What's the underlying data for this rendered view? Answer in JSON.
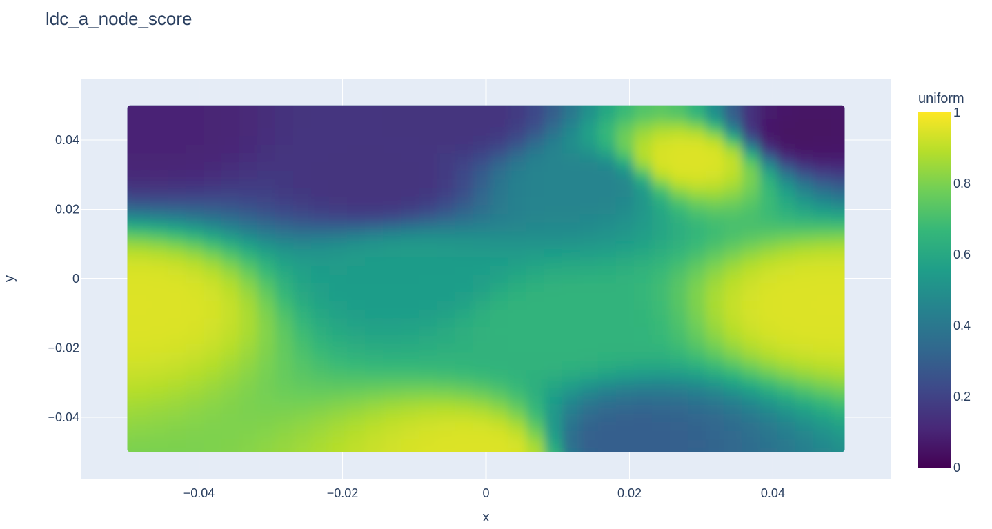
{
  "chart_data": {
    "type": "scatter",
    "title": "ldc_a_node_score",
    "xlabel": "x",
    "ylabel": "y",
    "xlim": [
      -0.0564,
      0.0564
    ],
    "ylim": [
      -0.0577,
      0.0577
    ],
    "grid": true,
    "x_ticks": [
      -0.04,
      -0.02,
      0,
      0.02,
      0.04
    ],
    "x_tick_labels": [
      "−0.04",
      "−0.02",
      "0",
      "0.02",
      "0.04"
    ],
    "y_ticks": [
      0.04,
      0.02,
      0,
      -0.02,
      -0.04
    ],
    "y_tick_labels": [
      "0.04",
      "0.02",
      "0",
      "−0.02",
      "−0.04"
    ],
    "colorbar": {
      "title": "uniform",
      "colorscale": "Viridis",
      "range": [
        0,
        1
      ],
      "ticks": [
        1,
        0.8,
        0.6,
        0.4,
        0.2,
        0
      ],
      "tick_labels": [
        "1",
        "0.8",
        "0.6",
        "0.4",
        "0.2",
        "0"
      ]
    },
    "data_extent": {
      "x": [
        -0.05,
        0.05
      ],
      "y": [
        -0.05,
        0.05
      ]
    },
    "field_samples": [
      {
        "x": -0.045,
        "y": 0.045,
        "value": 0.1
      },
      {
        "x": 0.045,
        "y": 0.045,
        "value": 0.05
      },
      {
        "x": -0.048,
        "y": -0.005,
        "value": 0.95
      },
      {
        "x": 0.048,
        "y": -0.005,
        "value": 0.95
      },
      {
        "x": 0.029,
        "y": 0.037,
        "value": 0.95
      },
      {
        "x": 0,
        "y": -0.048,
        "value": 0.95
      },
      {
        "x": -0.005,
        "y": 0.049,
        "value": 0.15
      },
      {
        "x": -0.01,
        "y": 0.003,
        "value": 0.55
      },
      {
        "x": 0.01,
        "y": -0.01,
        "value": 0.65
      },
      {
        "x": -0.015,
        "y": 0.032,
        "value": 0.15
      },
      {
        "x": 0.015,
        "y": 0.03,
        "value": 0.45
      },
      {
        "x": 0.02,
        "y": -0.045,
        "value": 0.3
      }
    ],
    "colors": {
      "plot_background": "#e5ecf6",
      "grid": "#ffffff",
      "text": "#2a3f5f"
    }
  }
}
